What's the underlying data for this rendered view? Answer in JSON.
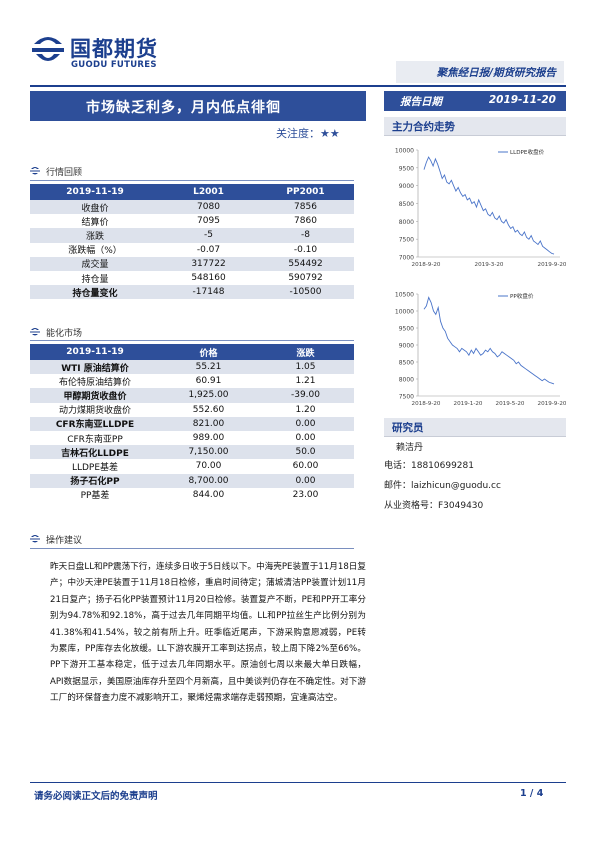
{
  "brand": {
    "name_cn": "国都期货",
    "name_en": "GUODU FUTURES"
  },
  "banner": "聚焦经日报/期货研究报告",
  "title": "市场缺乏利多，月内低点徘徊",
  "attention": "关注度：★★",
  "report_date": {
    "label": "报告日期",
    "value": "2019-11-20"
  },
  "sections": {
    "market_review": "行情回顾",
    "petrochem_market": "能化市场",
    "operation": "操作建议",
    "main_contract": "主力合约走势",
    "research_staff": "研究员"
  },
  "table1": {
    "headers": [
      "2019-11-19",
      "L2001",
      "PP2001"
    ],
    "rows": [
      [
        "收盘价",
        "7080",
        "7856"
      ],
      [
        "结算价",
        "7095",
        "7860"
      ],
      [
        "涨跌",
        "-5",
        "-8"
      ],
      [
        "涨跌幅（%）",
        "-0.07",
        "-0.10"
      ],
      [
        "成交量",
        "317722",
        "554492"
      ],
      [
        "持仓量",
        "548160",
        "590792"
      ],
      [
        "持仓量变化",
        "-17148",
        "-10500"
      ]
    ]
  },
  "table2": {
    "headers": [
      "2019-11-19",
      "价格",
      "涨跌"
    ],
    "rows": [
      [
        "WTI 原油结算价",
        "55.21",
        "1.05"
      ],
      [
        "布伦特原油结算价",
        "60.91",
        "1.21"
      ],
      [
        "甲醇期货收盘价",
        "1,925.00",
        "-39.00"
      ],
      [
        "动力煤期货收盘价",
        "552.60",
        "1.20"
      ],
      [
        "CFR东南亚LLDPE",
        "821.00",
        "0.00"
      ],
      [
        "CFR东南亚PP",
        "989.00",
        "0.00"
      ],
      [
        "吉林石化LLDPE",
        "7,150.00",
        "50.0"
      ],
      [
        "LLDPE基差",
        "70.00",
        "60.00"
      ],
      [
        "扬子石化PP",
        "8,700.00",
        "0.00"
      ],
      [
        "PP基差",
        "844.00",
        "23.00"
      ]
    ]
  },
  "advice_text": "昨天日盘LL和PP震荡下行，连续多日收于5日线以下。中海壳PE装置于11月18日复产；中沙天津PE装置于11月18日检修，重启时间待定；蒲城清洁PP装置计划11月21日复产；扬子石化PP装置预计11月20日检修。装置复产不断，PE和PP开工率分别为94.78%和92.18%，高于过去几年同期平均值。LL和PP拉丝生产比例分别为41.38%和41.54%，较之前有所上升。旺季临近尾声，下游采购意愿减弱，PE转为累库，PP库存去化放缓。LL下游农膜开工率到达拐点，较上周下降2%至66%。PP下游开工基本稳定，低于过去几年同期水平。原油创七周以来最大单日跌幅，API数据显示，美国原油库存升至四个月新高，且中美谈判仍存在不确定性。对下游工厂的环保督查力度不减影响开工，聚烯烃需求端存走弱预期，宜逢高沽空。",
  "chart_data": [
    {
      "type": "line",
      "title": "",
      "series": [
        {
          "name": "LLDPE收盘价",
          "color": "#4a74c9",
          "values": [
            9450,
            9650,
            9800,
            9700,
            9550,
            9750,
            9600,
            9400,
            9200,
            9300,
            9100,
            9050,
            9150,
            9000,
            8850,
            8950,
            8800,
            8700,
            8750,
            8600,
            8650,
            8500,
            8550,
            8400,
            8600,
            8450,
            8300,
            8350,
            8200,
            8150,
            8250,
            8100,
            8050,
            8150,
            8000,
            7950,
            8050,
            7900,
            7800,
            7850,
            7700,
            7750,
            7650,
            7600,
            7700,
            7550,
            7500,
            7600,
            7450,
            7400,
            7350,
            7450,
            7300,
            7250,
            7200,
            7150,
            7100,
            7080
          ]
        }
      ],
      "ylim": [
        7000,
        10000
      ],
      "yticks": [
        "10000",
        "9500",
        "9000",
        "8500",
        "8000",
        "7500",
        "7000"
      ],
      "xticks": [
        "2018-9-20",
        "2019-3-20",
        "2019-9-20"
      ]
    },
    {
      "type": "line",
      "title": "",
      "series": [
        {
          "name": "PP收盘价",
          "color": "#4a74c9",
          "values": [
            10050,
            10150,
            10400,
            10250,
            10000,
            9900,
            10100,
            9700,
            9500,
            9400,
            9200,
            9100,
            9000,
            8950,
            8900,
            8800,
            8900,
            8850,
            8800,
            8700,
            8850,
            8750,
            8900,
            8800,
            8700,
            8750,
            8850,
            8800,
            8900,
            8800,
            8750,
            8650,
            8700,
            8800,
            8750,
            8700,
            8650,
            8600,
            8550,
            8450,
            8500,
            8400,
            8350,
            8300,
            8250,
            8200,
            8150,
            8100,
            8050,
            8000,
            7950,
            8000,
            7950,
            7900,
            7880,
            7856
          ]
        }
      ],
      "ylim": [
        7500,
        10500
      ],
      "yticks": [
        "10500",
        "10000",
        "9500",
        "9000",
        "8500",
        "8000",
        "7500"
      ],
      "xticks": [
        "2018-9-20",
        "2019-1-20",
        "2019-5-20",
        "2019-9-20"
      ]
    }
  ],
  "researcher": {
    "name": "赖洁丹",
    "phone": "电话：18810699281",
    "email": "邮件：laizhicun@guodu.cc",
    "cert": "从业资格号：F3049430"
  },
  "footer": {
    "disclaimer": "请务必阅读正文后的免责声明",
    "page": "1 / 4"
  }
}
